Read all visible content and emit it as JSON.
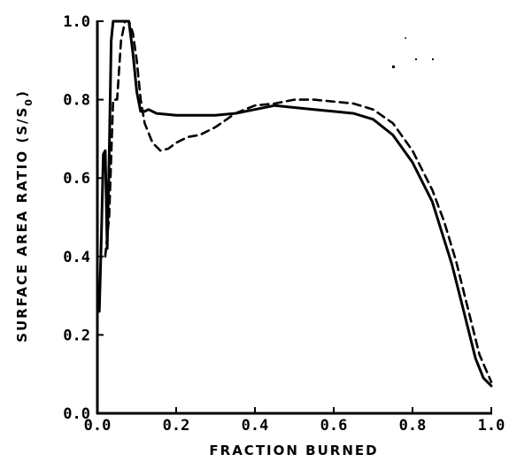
{
  "chart_data": {
    "type": "line",
    "title": "",
    "xlabel": "FRACTION BURNED",
    "ylabel": "SURFACE AREA RATIO (S/S",
    "ylabel_subscript": "0",
    "ylabel_close": ")",
    "xlim": [
      0.0,
      1.0
    ],
    "ylim": [
      0.0,
      1.0
    ],
    "x_ticks": [
      "0.0",
      "0.2",
      "0.4",
      "0.6",
      "0.8",
      "1.0"
    ],
    "y_ticks": [
      "0.0",
      "0.2",
      "0.4",
      "0.6",
      "0.8",
      "1.0"
    ],
    "grid": false,
    "legend": "none",
    "series": [
      {
        "style": "solid",
        "x": [
          0.0,
          0.005,
          0.01,
          0.015,
          0.02,
          0.025,
          0.03,
          0.035,
          0.04,
          0.045,
          0.05,
          0.06,
          0.07,
          0.08,
          0.09,
          0.1,
          0.11,
          0.12,
          0.13,
          0.15,
          0.2,
          0.25,
          0.3,
          0.35,
          0.4,
          0.45,
          0.5,
          0.55,
          0.6,
          0.65,
          0.7,
          0.75,
          0.8,
          0.85,
          0.9,
          0.93,
          0.96,
          0.98,
          1.0
        ],
        "y": [
          0.27,
          0.26,
          0.45,
          0.66,
          0.67,
          0.42,
          0.65,
          0.95,
          1.0,
          1.0,
          1.0,
          1.0,
          1.0,
          1.0,
          0.92,
          0.82,
          0.77,
          0.77,
          0.775,
          0.765,
          0.76,
          0.76,
          0.76,
          0.765,
          0.775,
          0.785,
          0.78,
          0.775,
          0.77,
          0.765,
          0.75,
          0.71,
          0.64,
          0.54,
          0.38,
          0.26,
          0.14,
          0.09,
          0.07
        ]
      },
      {
        "style": "dashed",
        "x": [
          0.02,
          0.03,
          0.04,
          0.05,
          0.06,
          0.07,
          0.08,
          0.09,
          0.1,
          0.11,
          0.12,
          0.14,
          0.16,
          0.18,
          0.2,
          0.23,
          0.26,
          0.3,
          0.35,
          0.4,
          0.45,
          0.5,
          0.55,
          0.6,
          0.65,
          0.7,
          0.75,
          0.8,
          0.85,
          0.88,
          0.91,
          0.94,
          0.97,
          1.0
        ],
        "y": [
          0.4,
          0.5,
          0.8,
          0.8,
          0.95,
          1.0,
          1.0,
          0.97,
          0.9,
          0.8,
          0.74,
          0.69,
          0.67,
          0.675,
          0.69,
          0.705,
          0.71,
          0.73,
          0.765,
          0.785,
          0.79,
          0.8,
          0.8,
          0.795,
          0.79,
          0.775,
          0.74,
          0.67,
          0.57,
          0.49,
          0.39,
          0.27,
          0.15,
          0.08
        ]
      }
    ]
  }
}
